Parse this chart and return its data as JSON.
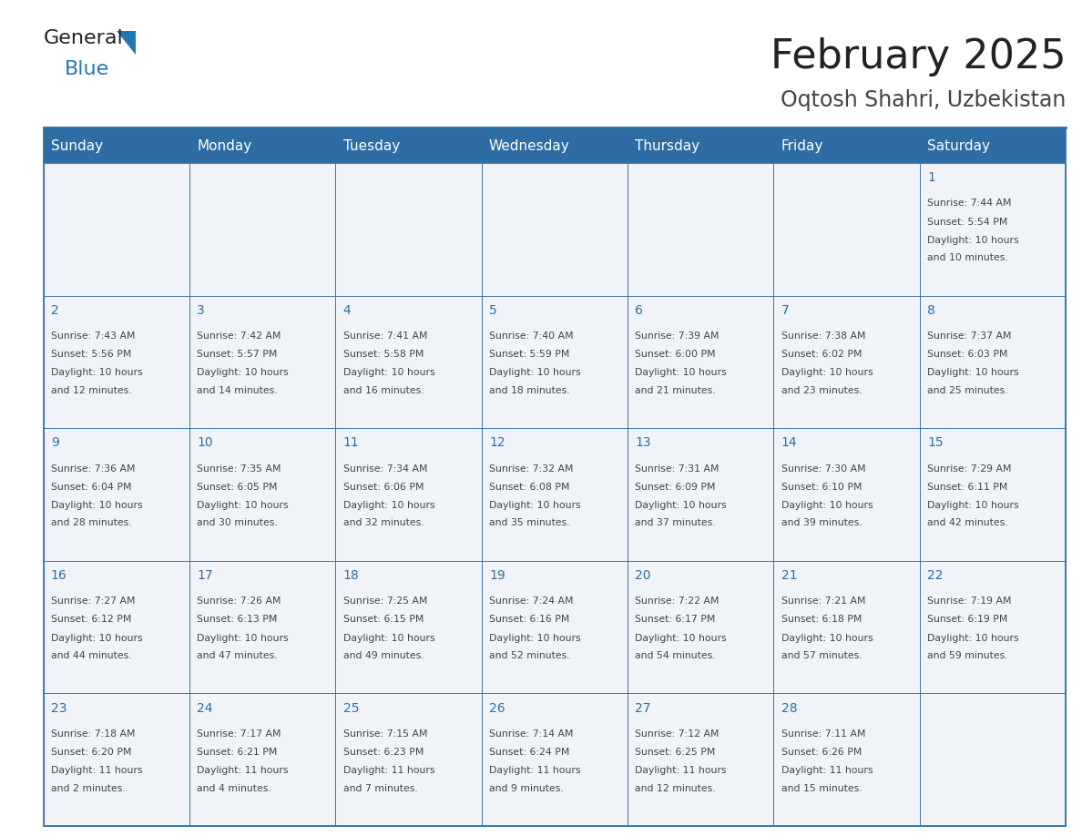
{
  "title": "February 2025",
  "subtitle": "Oqtosh Shahri, Uzbekistan",
  "days_of_week": [
    "Sunday",
    "Monday",
    "Tuesday",
    "Wednesday",
    "Thursday",
    "Friday",
    "Saturday"
  ],
  "header_bg": "#2E6DA4",
  "header_text": "#FFFFFF",
  "cell_bg_light": "#F0F4F8",
  "border_color": "#2E6DA4",
  "day_num_color": "#2E6DA4",
  "text_color": "#444444",
  "title_color": "#222222",
  "subtitle_color": "#444444",
  "logo_general_color": "#222222",
  "logo_blue_color": "#2278B5",
  "calendar_data": [
    [
      null,
      null,
      null,
      null,
      null,
      null,
      {
        "day": 1,
        "sunrise": "7:44 AM",
        "sunset": "5:54 PM",
        "daylight": "10 hours\nand 10 minutes."
      }
    ],
    [
      {
        "day": 2,
        "sunrise": "7:43 AM",
        "sunset": "5:56 PM",
        "daylight": "10 hours\nand 12 minutes."
      },
      {
        "day": 3,
        "sunrise": "7:42 AM",
        "sunset": "5:57 PM",
        "daylight": "10 hours\nand 14 minutes."
      },
      {
        "day": 4,
        "sunrise": "7:41 AM",
        "sunset": "5:58 PM",
        "daylight": "10 hours\nand 16 minutes."
      },
      {
        "day": 5,
        "sunrise": "7:40 AM",
        "sunset": "5:59 PM",
        "daylight": "10 hours\nand 18 minutes."
      },
      {
        "day": 6,
        "sunrise": "7:39 AM",
        "sunset": "6:00 PM",
        "daylight": "10 hours\nand 21 minutes."
      },
      {
        "day": 7,
        "sunrise": "7:38 AM",
        "sunset": "6:02 PM",
        "daylight": "10 hours\nand 23 minutes."
      },
      {
        "day": 8,
        "sunrise": "7:37 AM",
        "sunset": "6:03 PM",
        "daylight": "10 hours\nand 25 minutes."
      }
    ],
    [
      {
        "day": 9,
        "sunrise": "7:36 AM",
        "sunset": "6:04 PM",
        "daylight": "10 hours\nand 28 minutes."
      },
      {
        "day": 10,
        "sunrise": "7:35 AM",
        "sunset": "6:05 PM",
        "daylight": "10 hours\nand 30 minutes."
      },
      {
        "day": 11,
        "sunrise": "7:34 AM",
        "sunset": "6:06 PM",
        "daylight": "10 hours\nand 32 minutes."
      },
      {
        "day": 12,
        "sunrise": "7:32 AM",
        "sunset": "6:08 PM",
        "daylight": "10 hours\nand 35 minutes."
      },
      {
        "day": 13,
        "sunrise": "7:31 AM",
        "sunset": "6:09 PM",
        "daylight": "10 hours\nand 37 minutes."
      },
      {
        "day": 14,
        "sunrise": "7:30 AM",
        "sunset": "6:10 PM",
        "daylight": "10 hours\nand 39 minutes."
      },
      {
        "day": 15,
        "sunrise": "7:29 AM",
        "sunset": "6:11 PM",
        "daylight": "10 hours\nand 42 minutes."
      }
    ],
    [
      {
        "day": 16,
        "sunrise": "7:27 AM",
        "sunset": "6:12 PM",
        "daylight": "10 hours\nand 44 minutes."
      },
      {
        "day": 17,
        "sunrise": "7:26 AM",
        "sunset": "6:13 PM",
        "daylight": "10 hours\nand 47 minutes."
      },
      {
        "day": 18,
        "sunrise": "7:25 AM",
        "sunset": "6:15 PM",
        "daylight": "10 hours\nand 49 minutes."
      },
      {
        "day": 19,
        "sunrise": "7:24 AM",
        "sunset": "6:16 PM",
        "daylight": "10 hours\nand 52 minutes."
      },
      {
        "day": 20,
        "sunrise": "7:22 AM",
        "sunset": "6:17 PM",
        "daylight": "10 hours\nand 54 minutes."
      },
      {
        "day": 21,
        "sunrise": "7:21 AM",
        "sunset": "6:18 PM",
        "daylight": "10 hours\nand 57 minutes."
      },
      {
        "day": 22,
        "sunrise": "7:19 AM",
        "sunset": "6:19 PM",
        "daylight": "10 hours\nand 59 minutes."
      }
    ],
    [
      {
        "day": 23,
        "sunrise": "7:18 AM",
        "sunset": "6:20 PM",
        "daylight": "11 hours\nand 2 minutes."
      },
      {
        "day": 24,
        "sunrise": "7:17 AM",
        "sunset": "6:21 PM",
        "daylight": "11 hours\nand 4 minutes."
      },
      {
        "day": 25,
        "sunrise": "7:15 AM",
        "sunset": "6:23 PM",
        "daylight": "11 hours\nand 7 minutes."
      },
      {
        "day": 26,
        "sunrise": "7:14 AM",
        "sunset": "6:24 PM",
        "daylight": "11 hours\nand 9 minutes."
      },
      {
        "day": 27,
        "sunrise": "7:12 AM",
        "sunset": "6:25 PM",
        "daylight": "11 hours\nand 12 minutes."
      },
      {
        "day": 28,
        "sunrise": "7:11 AM",
        "sunset": "6:26 PM",
        "daylight": "11 hours\nand 15 minutes."
      },
      null
    ]
  ]
}
